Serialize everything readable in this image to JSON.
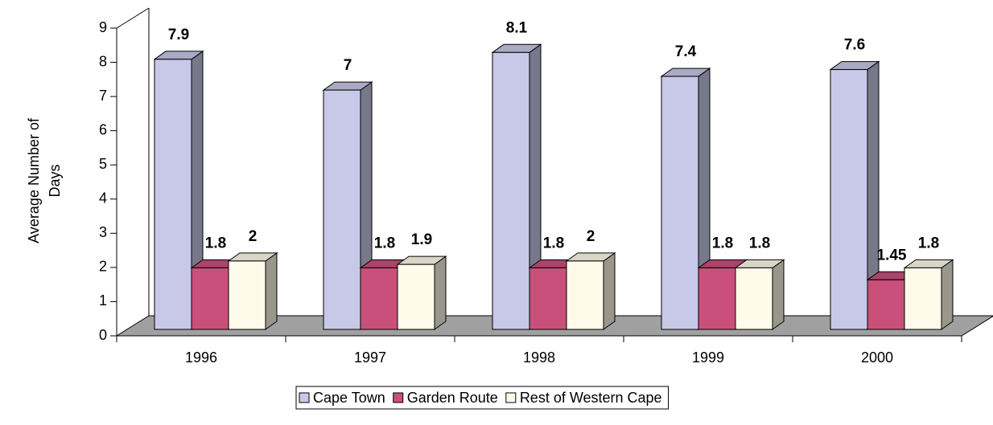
{
  "chart_data": {
    "type": "bar3d",
    "y_label": "Average Number of Days",
    "categories": [
      "1996",
      "1997",
      "1998",
      "1999",
      "2000"
    ],
    "series": [
      {
        "name": "Cape Town",
        "color": "#c8c8e8",
        "values": [
          7.9,
          7,
          8.1,
          7.4,
          7.6
        ]
      },
      {
        "name": "Garden Route",
        "color": "#c8507a",
        "values": [
          1.8,
          1.8,
          1.8,
          1.8,
          1.45
        ]
      },
      {
        "name": "Rest of Western Cape",
        "color": "#fffbea",
        "values": [
          2,
          1.9,
          2,
          1.8,
          1.8
        ]
      }
    ],
    "ylim": [
      0,
      9
    ],
    "yticks": [
      0,
      1,
      2,
      3,
      4,
      5,
      6,
      7,
      8,
      9
    ],
    "legend": "bottom"
  }
}
